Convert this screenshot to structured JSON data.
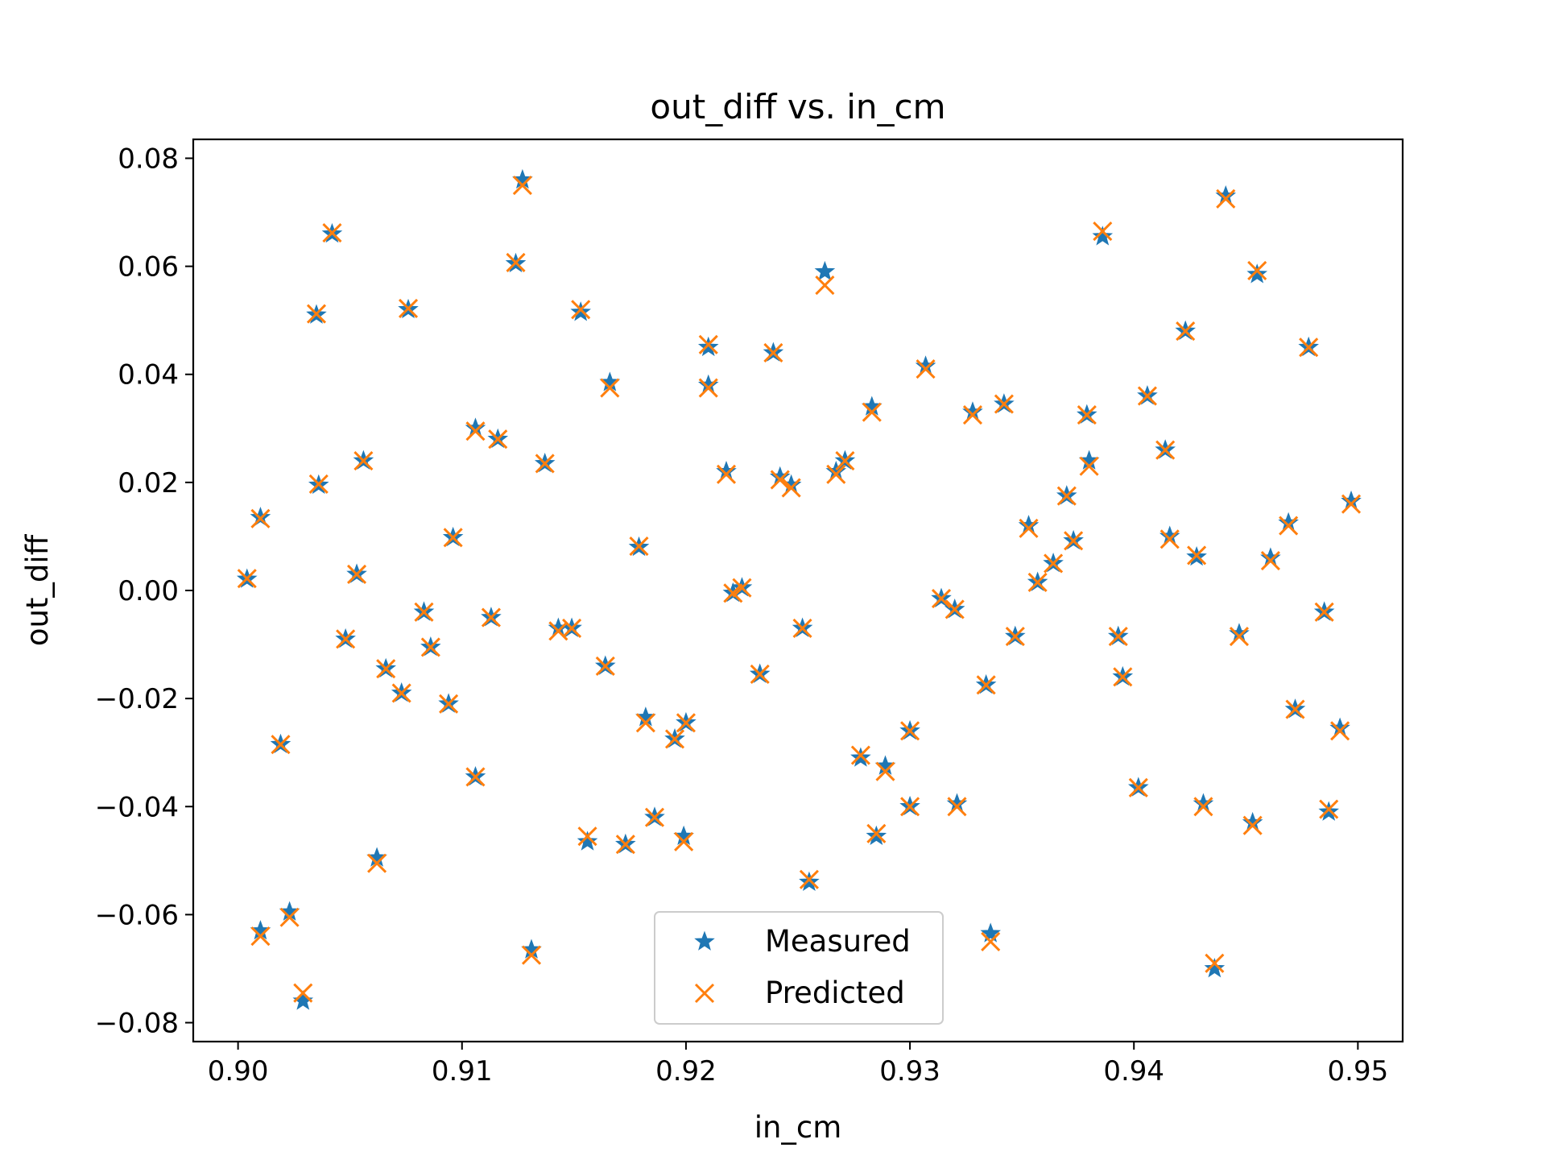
{
  "chart_data": {
    "type": "scatter",
    "title": "out_diff vs. in_cm",
    "xlabel": "in_cm",
    "ylabel": "out_diff",
    "xlim": [
      0.898,
      0.952
    ],
    "ylim": [
      -0.0835,
      0.0835
    ],
    "xticks": [
      0.9,
      0.91,
      0.92,
      0.93,
      0.94,
      0.95
    ],
    "xtick_labels": [
      "0.90",
      "0.91",
      "0.92",
      "0.93",
      "0.94",
      "0.95"
    ],
    "yticks": [
      -0.08,
      -0.06,
      -0.04,
      -0.02,
      0.0,
      0.02,
      0.04,
      0.06,
      0.08
    ],
    "ytick_labels": [
      "−0.08",
      "−0.06",
      "−0.04",
      "−0.02",
      "0.00",
      "0.02",
      "0.04",
      "0.06",
      "0.08"
    ],
    "grid": false,
    "legend_position": "lower-center",
    "series": [
      {
        "name": "Measured",
        "marker": "star",
        "color": "#1f77b4",
        "points": [
          [
            0.9004,
            0.0021
          ],
          [
            0.901,
            0.0135
          ],
          [
            0.901,
            -0.063
          ],
          [
            0.9019,
            -0.0285
          ],
          [
            0.9023,
            -0.0595
          ],
          [
            0.9029,
            -0.076
          ],
          [
            0.9035,
            0.051
          ],
          [
            0.9036,
            0.0195
          ],
          [
            0.9042,
            0.066
          ],
          [
            0.9048,
            -0.009
          ],
          [
            0.9053,
            0.003
          ],
          [
            0.9056,
            0.024
          ],
          [
            0.9062,
            -0.0495
          ],
          [
            0.9066,
            -0.0145
          ],
          [
            0.9073,
            -0.019
          ],
          [
            0.9076,
            0.052
          ],
          [
            0.9083,
            -0.004
          ],
          [
            0.9086,
            -0.0105
          ],
          [
            0.9094,
            -0.021
          ],
          [
            0.9096,
            0.0098
          ],
          [
            0.9106,
            -0.0345
          ],
          [
            0.9106,
            0.03
          ],
          [
            0.9113,
            -0.005
          ],
          [
            0.9116,
            0.028
          ],
          [
            0.9124,
            0.0605
          ],
          [
            0.9127,
            0.076
          ],
          [
            0.9131,
            -0.0665
          ],
          [
            0.9137,
            0.0235
          ],
          [
            0.9143,
            -0.007
          ],
          [
            0.9149,
            -0.007
          ],
          [
            0.9153,
            0.0515
          ],
          [
            0.9156,
            -0.0465
          ],
          [
            0.9164,
            -0.014
          ],
          [
            0.9166,
            0.0385
          ],
          [
            0.9173,
            -0.047
          ],
          [
            0.9179,
            0.008
          ],
          [
            0.9182,
            -0.0235
          ],
          [
            0.9186,
            -0.042
          ],
          [
            0.9195,
            -0.0275
          ],
          [
            0.9199,
            -0.0455
          ],
          [
            0.92,
            -0.0245
          ],
          [
            0.921,
            0.038
          ],
          [
            0.921,
            0.045
          ],
          [
            0.9218,
            0.022
          ],
          [
            0.9221,
            -0.0005
          ],
          [
            0.9225,
            0.0005
          ],
          [
            0.9233,
            -0.0155
          ],
          [
            0.9239,
            0.044
          ],
          [
            0.9242,
            0.021
          ],
          [
            0.9247,
            0.0195
          ],
          [
            0.9252,
            -0.007
          ],
          [
            0.9255,
            -0.054
          ],
          [
            0.9262,
            0.059
          ],
          [
            0.9267,
            0.022
          ],
          [
            0.9271,
            0.024
          ],
          [
            0.9278,
            -0.031
          ],
          [
            0.9283,
            0.034
          ],
          [
            0.9285,
            -0.0455
          ],
          [
            0.9289,
            -0.0325
          ],
          [
            0.93,
            -0.04
          ],
          [
            0.93,
            -0.026
          ],
          [
            0.9307,
            0.0415
          ],
          [
            0.9314,
            -0.0015
          ],
          [
            0.932,
            -0.0035
          ],
          [
            0.9321,
            -0.0395
          ],
          [
            0.9328,
            0.033
          ],
          [
            0.9334,
            -0.0175
          ],
          [
            0.9336,
            -0.0635
          ],
          [
            0.9342,
            0.0345
          ],
          [
            0.9347,
            -0.0085
          ],
          [
            0.9353,
            0.012
          ],
          [
            0.9357,
            0.0015
          ],
          [
            0.9364,
            0.005
          ],
          [
            0.937,
            0.0175
          ],
          [
            0.9373,
            0.0092
          ],
          [
            0.9379,
            0.0325
          ],
          [
            0.938,
            0.024
          ],
          [
            0.9386,
            0.0655
          ],
          [
            0.9393,
            -0.0085
          ],
          [
            0.9395,
            -0.016
          ],
          [
            0.9402,
            -0.0365
          ],
          [
            0.9406,
            0.036
          ],
          [
            0.9414,
            0.026
          ],
          [
            0.9416,
            0.01
          ],
          [
            0.9423,
            0.048
          ],
          [
            0.9428,
            0.0062
          ],
          [
            0.9431,
            -0.0395
          ],
          [
            0.9436,
            -0.07
          ],
          [
            0.9441,
            0.073
          ],
          [
            0.9447,
            -0.008
          ],
          [
            0.9453,
            -0.043
          ],
          [
            0.9455,
            0.0585
          ],
          [
            0.9461,
            0.006
          ],
          [
            0.9469,
            0.0125
          ],
          [
            0.9472,
            -0.022
          ],
          [
            0.9478,
            0.045
          ],
          [
            0.9485,
            -0.004
          ],
          [
            0.9487,
            -0.041
          ],
          [
            0.9492,
            -0.0255
          ],
          [
            0.9497,
            0.0165
          ]
        ]
      },
      {
        "name": "Predicted",
        "marker": "x",
        "color": "#ff7f0e",
        "points": [
          [
            0.9004,
            0.0022
          ],
          [
            0.901,
            0.0133
          ],
          [
            0.901,
            -0.064
          ],
          [
            0.9019,
            -0.0285
          ],
          [
            0.9023,
            -0.0605
          ],
          [
            0.9029,
            -0.0745
          ],
          [
            0.9035,
            0.0512
          ],
          [
            0.9036,
            0.0197
          ],
          [
            0.9042,
            0.0662
          ],
          [
            0.9048,
            -0.009
          ],
          [
            0.9053,
            0.003
          ],
          [
            0.9056,
            0.024
          ],
          [
            0.9062,
            -0.0505
          ],
          [
            0.9066,
            -0.0145
          ],
          [
            0.9073,
            -0.019
          ],
          [
            0.9076,
            0.0522
          ],
          [
            0.9083,
            -0.004
          ],
          [
            0.9086,
            -0.0105
          ],
          [
            0.9094,
            -0.021
          ],
          [
            0.9096,
            0.0098
          ],
          [
            0.9106,
            -0.0345
          ],
          [
            0.9106,
            0.0295
          ],
          [
            0.9113,
            -0.005
          ],
          [
            0.9116,
            0.028
          ],
          [
            0.9124,
            0.0607
          ],
          [
            0.9127,
            0.075
          ],
          [
            0.9131,
            -0.0675
          ],
          [
            0.9137,
            0.0235
          ],
          [
            0.9143,
            -0.0075
          ],
          [
            0.9149,
            -0.007
          ],
          [
            0.9153,
            0.052
          ],
          [
            0.9156,
            -0.0455
          ],
          [
            0.9164,
            -0.014
          ],
          [
            0.9166,
            0.0375
          ],
          [
            0.9173,
            -0.047
          ],
          [
            0.9179,
            0.0082
          ],
          [
            0.9182,
            -0.0245
          ],
          [
            0.9186,
            -0.042
          ],
          [
            0.9195,
            -0.0275
          ],
          [
            0.9199,
            -0.0465
          ],
          [
            0.92,
            -0.0245
          ],
          [
            0.921,
            0.0375
          ],
          [
            0.921,
            0.0455
          ],
          [
            0.9218,
            0.0215
          ],
          [
            0.9221,
            -0.0005
          ],
          [
            0.9225,
            0.0005
          ],
          [
            0.9233,
            -0.0155
          ],
          [
            0.9239,
            0.044
          ],
          [
            0.9242,
            0.0205
          ],
          [
            0.9247,
            0.019
          ],
          [
            0.9252,
            -0.007
          ],
          [
            0.9255,
            -0.0535
          ],
          [
            0.9262,
            0.0565
          ],
          [
            0.9267,
            0.0215
          ],
          [
            0.9271,
            0.024
          ],
          [
            0.9278,
            -0.0305
          ],
          [
            0.9283,
            0.033
          ],
          [
            0.9285,
            -0.045
          ],
          [
            0.9289,
            -0.0335
          ],
          [
            0.93,
            -0.04
          ],
          [
            0.93,
            -0.026
          ],
          [
            0.9307,
            0.041
          ],
          [
            0.9314,
            -0.0015
          ],
          [
            0.932,
            -0.0035
          ],
          [
            0.9321,
            -0.04
          ],
          [
            0.9328,
            0.0325
          ],
          [
            0.9334,
            -0.0175
          ],
          [
            0.9336,
            -0.065
          ],
          [
            0.9342,
            0.0345
          ],
          [
            0.9347,
            -0.0085
          ],
          [
            0.9353,
            0.0115
          ],
          [
            0.9357,
            0.0015
          ],
          [
            0.9364,
            0.005
          ],
          [
            0.937,
            0.0175
          ],
          [
            0.9373,
            0.0092
          ],
          [
            0.9379,
            0.0325
          ],
          [
            0.938,
            0.023
          ],
          [
            0.9386,
            0.0665
          ],
          [
            0.9393,
            -0.0085
          ],
          [
            0.9395,
            -0.016
          ],
          [
            0.9402,
            -0.0365
          ],
          [
            0.9406,
            0.036
          ],
          [
            0.9414,
            0.026
          ],
          [
            0.9416,
            0.0095
          ],
          [
            0.9423,
            0.048
          ],
          [
            0.9428,
            0.0065
          ],
          [
            0.9431,
            -0.04
          ],
          [
            0.9436,
            -0.069
          ],
          [
            0.9441,
            0.0725
          ],
          [
            0.9447,
            -0.0085
          ],
          [
            0.9453,
            -0.0435
          ],
          [
            0.9455,
            0.0592
          ],
          [
            0.9461,
            0.0055
          ],
          [
            0.9469,
            0.012
          ],
          [
            0.9472,
            -0.022
          ],
          [
            0.9478,
            0.045
          ],
          [
            0.9485,
            -0.004
          ],
          [
            0.9487,
            -0.0405
          ],
          [
            0.9492,
            -0.026
          ],
          [
            0.9497,
            0.016
          ]
        ]
      }
    ]
  }
}
